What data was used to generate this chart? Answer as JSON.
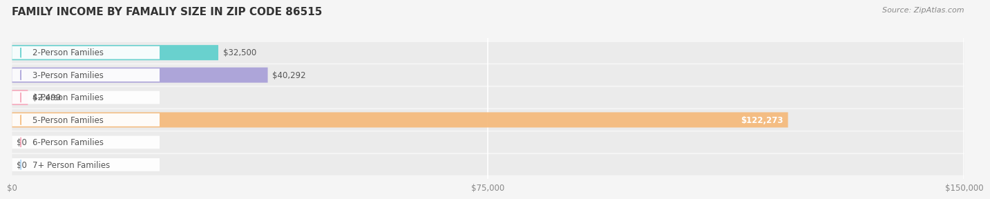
{
  "title": "FAMILY INCOME BY FAMALIY SIZE IN ZIP CODE 86515",
  "source": "Source: ZipAtlas.com",
  "categories": [
    "2-Person Families",
    "3-Person Families",
    "4-Person Families",
    "5-Person Families",
    "6-Person Families",
    "7+ Person Families"
  ],
  "values": [
    32500,
    40292,
    2499,
    122273,
    0,
    0
  ],
  "bar_colors": [
    "#5ecfcc",
    "#a89fd8",
    "#f5a0b5",
    "#f5b97a",
    "#f5a0b5",
    "#a8cff0"
  ],
  "label_colors": [
    "#5ecfcc",
    "#a89fd8",
    "#f5a0b5",
    "#f5b97a",
    "#f5a0b5",
    "#a8cff0"
  ],
  "value_labels": [
    "$32,500",
    "$40,292",
    "$2,499",
    "$122,273",
    "$0",
    "$0"
  ],
  "xlim": [
    0,
    150000
  ],
  "xtick_values": [
    0,
    75000,
    150000
  ],
  "xtick_labels": [
    "$0",
    "$75,000",
    "$150,000"
  ],
  "bg_color": "#f5f5f5",
  "bar_bg_color": "#ebebeb",
  "title_fontsize": 11,
  "label_fontsize": 8.5,
  "value_fontsize": 8.5,
  "source_fontsize": 8
}
